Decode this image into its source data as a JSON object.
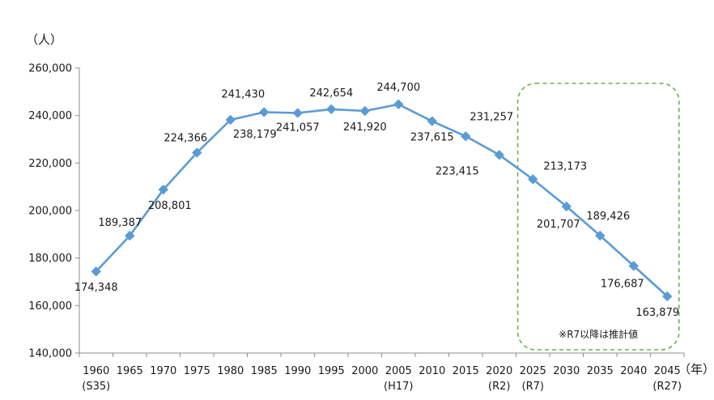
{
  "chart_data": {
    "type": "line",
    "title": "",
    "ylabel": "（人）",
    "xlabel": "（年）",
    "ylim": [
      140000,
      260000
    ],
    "y_ticks": [
      "140,000",
      "160,000",
      "180,000",
      "200,000",
      "220,000",
      "240,000",
      "260,000"
    ],
    "grid": false,
    "categories": [
      "1960",
      "1965",
      "1970",
      "1975",
      "1980",
      "1985",
      "1990",
      "1995",
      "2000",
      "2005",
      "2010",
      "2015",
      "2020",
      "2025",
      "2030",
      "2035",
      "2040",
      "2045"
    ],
    "category_sublabels": [
      "(S35)",
      "",
      "",
      "",
      "",
      "",
      "",
      "",
      "",
      "(H17)",
      "",
      "",
      "(R2)",
      "(R7)",
      "",
      "",
      "",
      "(R27)"
    ],
    "series": [
      {
        "values": [
          174348,
          189387,
          208801,
          224366,
          238179,
          241430,
          241057,
          242654,
          241920,
          244700,
          237615,
          231257,
          223415,
          213173,
          201707,
          189426,
          176687,
          163879
        ],
        "labels": [
          "174,348",
          "189,387",
          "208,801",
          "224,366",
          "238,179",
          "241,430",
          "241,057",
          "242,654",
          "241,920",
          "244,700",
          "237,615",
          "231,257",
          "223,415",
          "213,173",
          "201,707",
          "189,426",
          "176,687",
          "163,879"
        ],
        "color": "#5b9bd5"
      }
    ],
    "highlight": {
      "from_category": "2025",
      "to_category": "2045",
      "note": "※R7以降は推計値",
      "border_color": "#70ad47"
    }
  }
}
